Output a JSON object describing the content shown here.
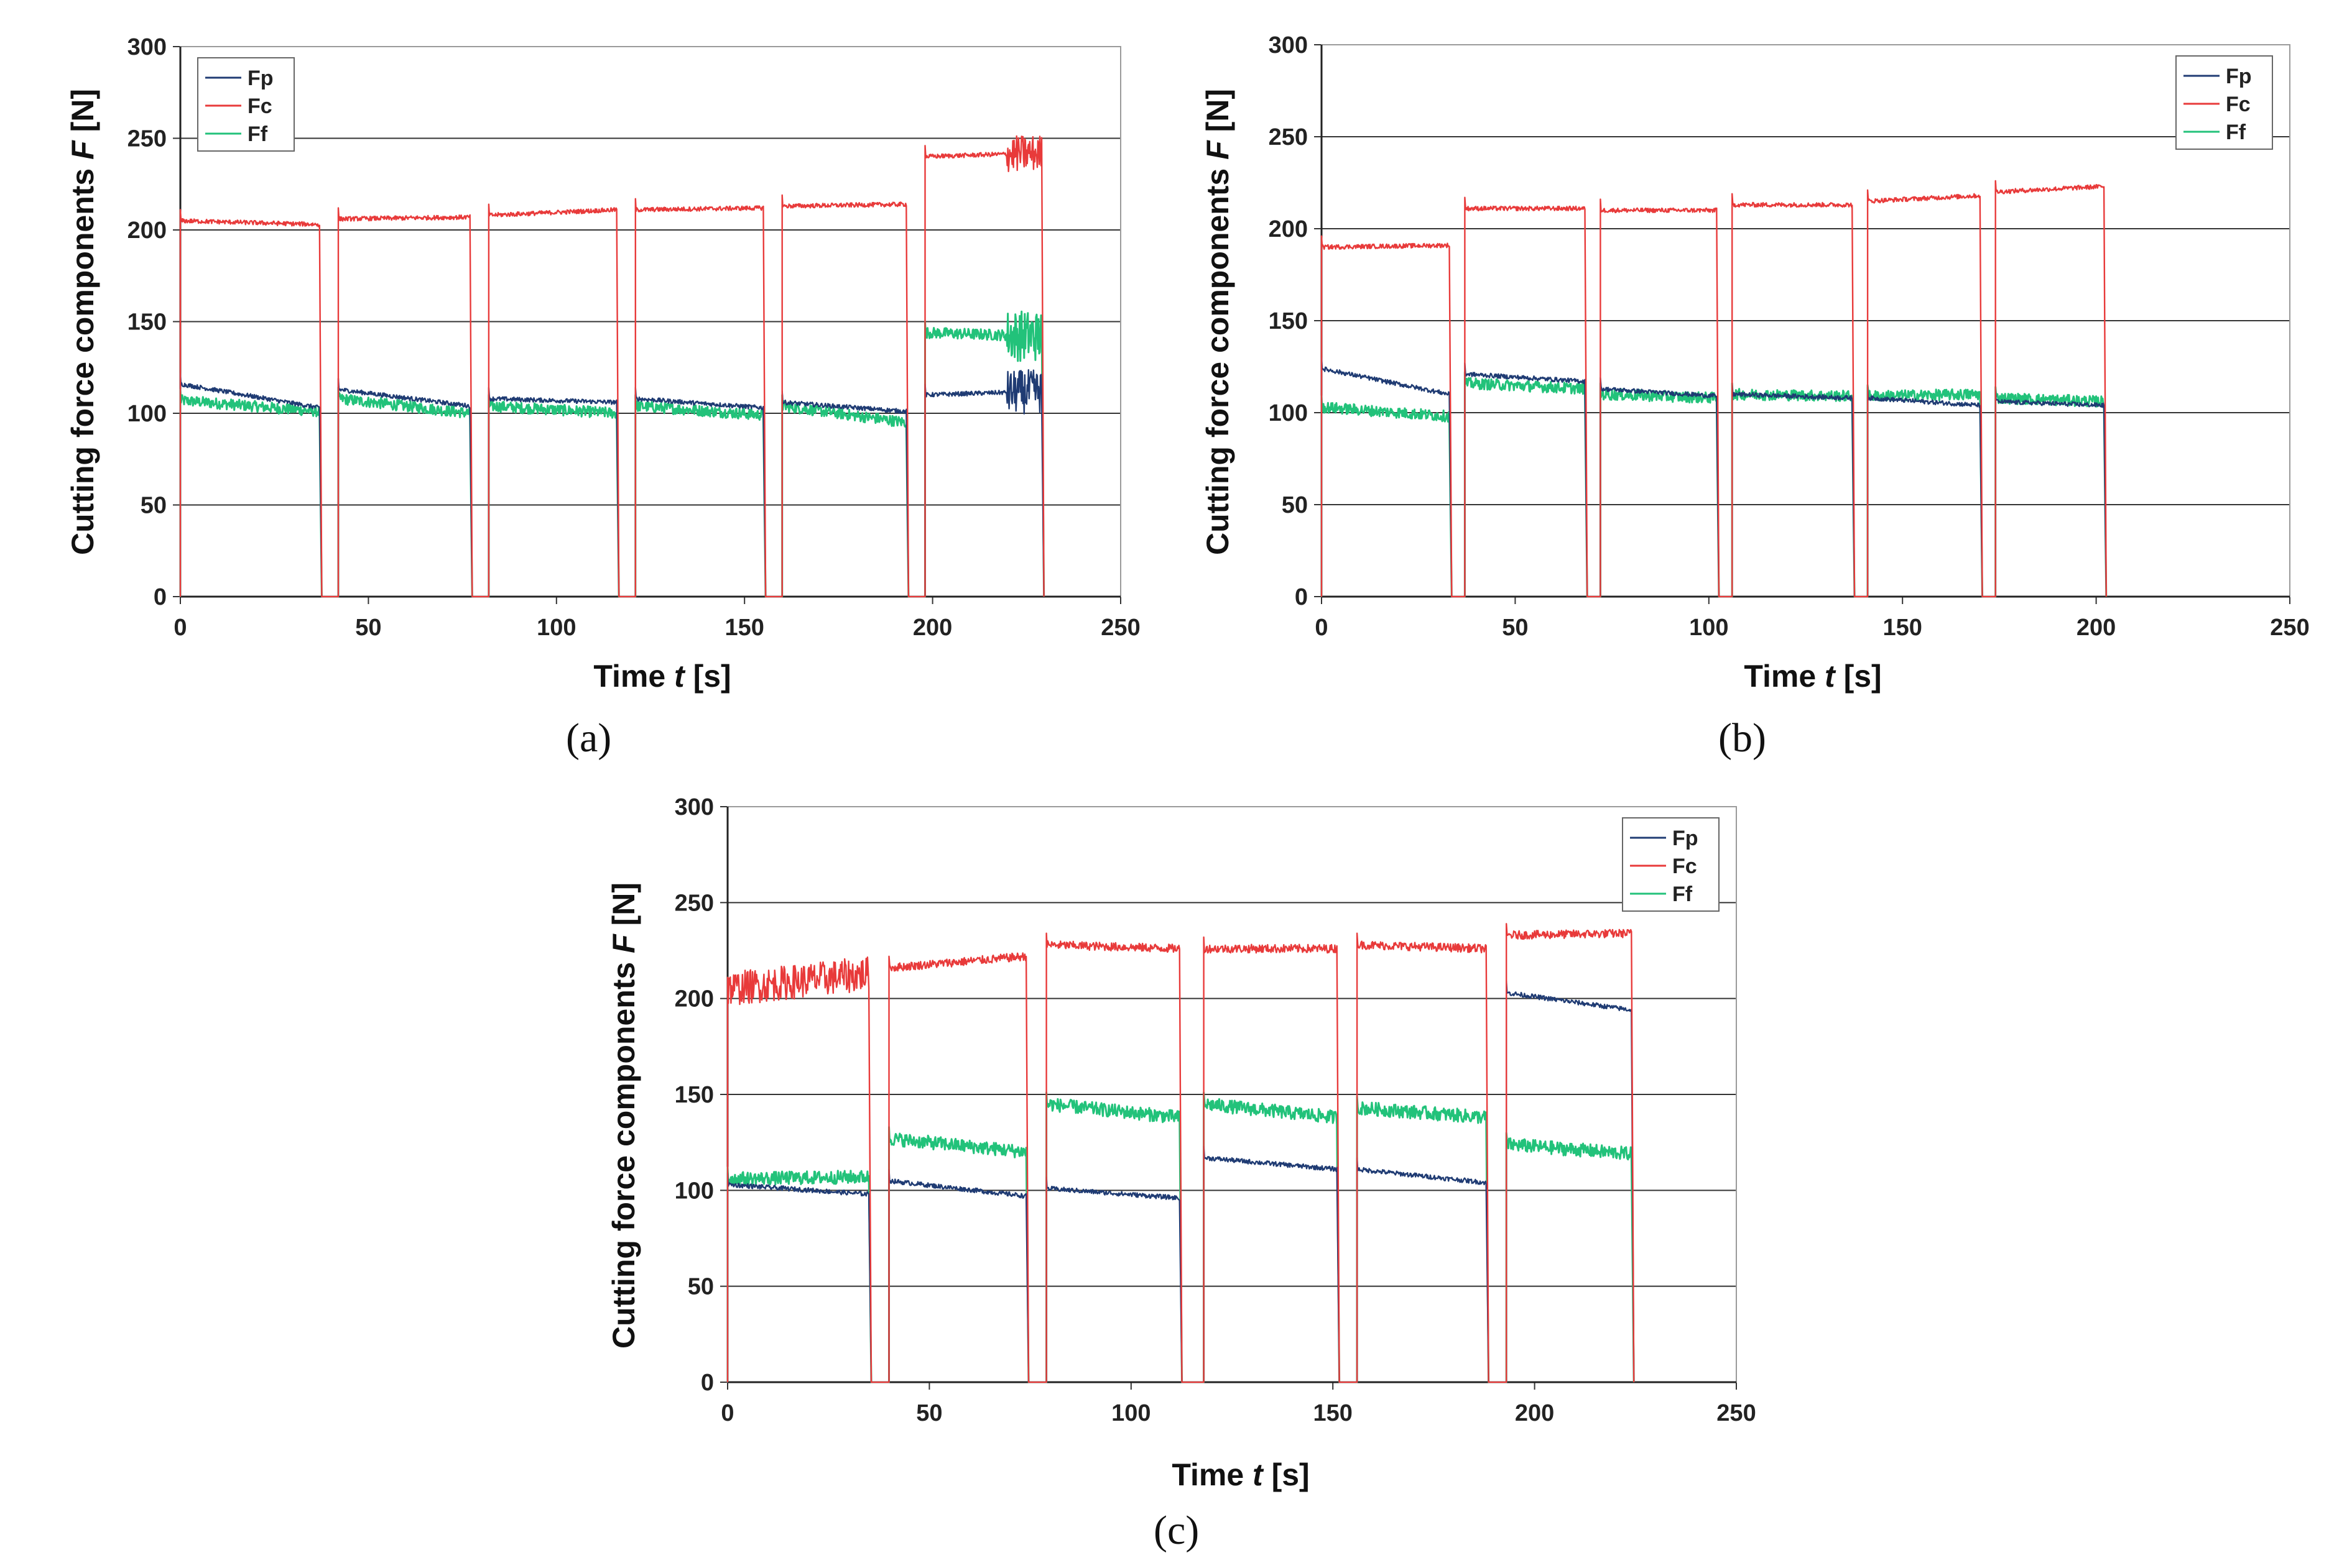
{
  "colors": {
    "Fp": "#1f3b73",
    "Fc": "#e83a3a",
    "Ff": "#22c27a"
  },
  "chart_data": [
    {
      "id": "a",
      "type": "line",
      "panel_label": "(a)",
      "xlabel_pre": "Time ",
      "xlabel_var": "t",
      "xlabel_post": " [s]",
      "ylabel_pre": "Cutting force components ",
      "ylabel_var": "F",
      "ylabel_post": " [N]",
      "xlim": [
        0,
        250
      ],
      "ylim": [
        0,
        300
      ],
      "xticks": [
        "0",
        "50",
        "100",
        "150",
        "200",
        "250"
      ],
      "yticks": [
        "0",
        "50",
        "100",
        "150",
        "200",
        "250",
        "300"
      ],
      "grid": "horizontal",
      "legend": {
        "position": "top-left",
        "entries": [
          "Fp",
          "Fc",
          "Ff"
        ]
      },
      "segments": [
        {
          "start": 0,
          "end": 37,
          "Fc": [
            205,
            203
          ],
          "Fp": [
            116,
            103
          ],
          "Ff": [
            107,
            101
          ]
        },
        {
          "start": 42,
          "end": 77,
          "Fc": [
            206,
            207
          ],
          "Fp": [
            113,
            104
          ],
          "Ff": [
            108,
            100
          ]
        },
        {
          "start": 82,
          "end": 116,
          "Fc": [
            208,
            211
          ],
          "Fp": [
            108,
            106
          ],
          "Ff": [
            104,
            100
          ]
        },
        {
          "start": 121,
          "end": 155,
          "Fc": [
            211,
            212
          ],
          "Fp": [
            108,
            103
          ],
          "Ff": [
            104,
            99
          ]
        },
        {
          "start": 160,
          "end": 193,
          "Fc": [
            213,
            214
          ],
          "Fp": [
            106,
            101
          ],
          "Ff": [
            104,
            95
          ]
        },
        {
          "start": 198,
          "end": 229,
          "Fc": [
            240,
            242
          ],
          "Fp": [
            110,
            112
          ],
          "Ff": [
            144,
            142
          ]
        }
      ]
    },
    {
      "id": "b",
      "type": "line",
      "panel_label": "(b)",
      "xlabel_pre": "Time ",
      "xlabel_var": "t",
      "xlabel_post": " [s]",
      "ylabel_pre": "Cutting force components ",
      "ylabel_var": "F",
      "ylabel_post": " [N]",
      "xlim": [
        0,
        250
      ],
      "ylim": [
        0,
        300
      ],
      "xticks": [
        "0",
        "50",
        "100",
        "150",
        "200",
        "250"
      ],
      "yticks": [
        "0",
        "50",
        "100",
        "150",
        "200",
        "250",
        "300"
      ],
      "grid": "horizontal",
      "legend": {
        "position": "top-right",
        "entries": [
          "Fp",
          "Fc",
          "Ff"
        ]
      },
      "segments": [
        {
          "start": 0,
          "end": 33,
          "Fc": [
            190,
            191
          ],
          "Fp": [
            124,
            110
          ],
          "Ff": [
            103,
            98
          ]
        },
        {
          "start": 37,
          "end": 68,
          "Fc": [
            211,
            211
          ],
          "Fp": [
            121,
            117
          ],
          "Ff": [
            116,
            113
          ]
        },
        {
          "start": 72,
          "end": 102,
          "Fc": [
            210,
            210
          ],
          "Fp": [
            113,
            109
          ],
          "Ff": [
            110,
            108
          ]
        },
        {
          "start": 106,
          "end": 137,
          "Fc": [
            213,
            213
          ],
          "Fp": [
            110,
            108
          ],
          "Ff": [
            110,
            109
          ]
        },
        {
          "start": 141,
          "end": 170,
          "Fc": [
            215,
            218
          ],
          "Fp": [
            108,
            104
          ],
          "Ff": [
            109,
            110
          ]
        },
        {
          "start": 174,
          "end": 202,
          "Fc": [
            220,
            223
          ],
          "Fp": [
            106,
            104
          ],
          "Ff": [
            108,
            106
          ]
        }
      ]
    },
    {
      "id": "c",
      "type": "line",
      "panel_label": "(c)",
      "xlabel_pre": "Time ",
      "xlabel_var": "t",
      "xlabel_post": " [s]",
      "ylabel_pre": "Cutting force components ",
      "ylabel_var": "F",
      "ylabel_post": " [N]",
      "xlim": [
        0,
        250
      ],
      "ylim": [
        0,
        300
      ],
      "xticks": [
        "0",
        "50",
        "100",
        "150",
        "200",
        "250"
      ],
      "yticks": [
        "0",
        "50",
        "100",
        "150",
        "200",
        "250",
        "300"
      ],
      "grid": "horizontal",
      "legend": {
        "position": "top-right",
        "entries": [
          "Fp",
          "Fc",
          "Ff"
        ]
      },
      "segments": [
        {
          "start": 0,
          "end": 35,
          "Fc": [
            205,
            213
          ],
          "Fp": [
            103,
            98
          ],
          "Ff": [
            106,
            107
          ]
        },
        {
          "start": 40,
          "end": 74,
          "Fc": [
            216,
            222
          ],
          "Fp": [
            105,
            97
          ],
          "Ff": [
            127,
            120
          ]
        },
        {
          "start": 79,
          "end": 112,
          "Fc": [
            228,
            226
          ],
          "Fp": [
            101,
            96
          ],
          "Ff": [
            145,
            138
          ]
        },
        {
          "start": 118,
          "end": 151,
          "Fc": [
            226,
            226
          ],
          "Fp": [
            117,
            111
          ],
          "Ff": [
            145,
            138
          ]
        },
        {
          "start": 156,
          "end": 188,
          "Fc": [
            228,
            226
          ],
          "Fp": [
            111,
            104
          ],
          "Ff": [
            143,
            138
          ]
        },
        {
          "start": 193,
          "end": 224,
          "Fc": [
            233,
            234
          ],
          "Fp": [
            203,
            194
          ],
          "Ff": [
            124,
            119
          ]
        }
      ]
    }
  ]
}
